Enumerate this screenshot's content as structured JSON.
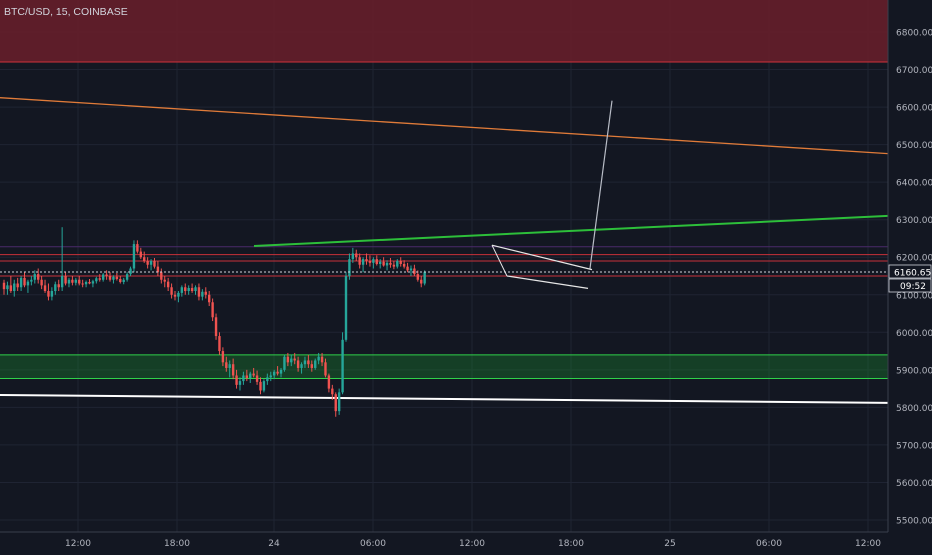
{
  "header": {
    "symbol_title": "BTC/USD, 15, COINBASE"
  },
  "price_axis": {
    "ticks": [
      "6800.00",
      "6700.00",
      "6600.00",
      "6500.00",
      "6400.00",
      "6300.00",
      "6200.00",
      "6100.00",
      "6000.00",
      "5900.00",
      "5800.00",
      "5700.00",
      "5600.00",
      "5500.00"
    ]
  },
  "time_axis": {
    "ticks": [
      "12:00",
      "18:00",
      "24",
      "06:00",
      "12:00",
      "18:00",
      "25",
      "06:00",
      "12:00"
    ]
  },
  "last_price_label": "6160.65",
  "countdown_label": "09:52",
  "colors": {
    "background": "#131722",
    "up_candle": "#26a69a",
    "down_candle": "#ef5350",
    "support_zone": "#1b8a2e",
    "resistance_zone": "#6b1f2a",
    "orange_trendline": "#e07b39",
    "green_trendline": "#2dbf3a",
    "white_trendline": "#ffffff"
  },
  "chart_data": {
    "type": "candlestick",
    "symbol": "BTC/USD",
    "interval": "15",
    "exchange": "COINBASE",
    "ylim": [
      5470,
      6870
    ],
    "x_ticks": [
      "12:00",
      "18:00",
      "24",
      "06:00",
      "12:00",
      "18:00",
      "25",
      "06:00",
      "12:00"
    ],
    "y_ticks": [
      6800,
      6700,
      6600,
      6500,
      6400,
      6300,
      6200,
      6100,
      6000,
      5900,
      5800,
      5700,
      5600,
      5500
    ],
    "last_price": 6160.65,
    "bar_countdown": "09:52",
    "zones": [
      {
        "kind": "resistance",
        "from": 6720,
        "to": 6870
      },
      {
        "kind": "support",
        "from": 5877,
        "to": 5940
      }
    ],
    "horizontal_lines": [
      6207,
      6190,
      6150,
      6228
    ],
    "trendlines": [
      {
        "color": "orange",
        "from": {
          "bar": 0,
          "price": 6625
        },
        "to": {
          "bar": 187,
          "price": 6476
        }
      },
      {
        "color": "green",
        "from": {
          "bar": 54,
          "price": 6230
        },
        "to": {
          "bar": 187,
          "price": 6310
        }
      },
      {
        "color": "white",
        "from": {
          "bar": 0,
          "price": 5833
        },
        "to": {
          "bar": 187,
          "price": 5812
        }
      },
      {
        "color": "gray",
        "from": {
          "bar": 124,
          "price": 6170
        },
        "to": {
          "bar": 130,
          "price": 6617
        }
      }
    ],
    "flag_pattern": {
      "upper": [
        {
          "bar": 104,
          "price": 6232
        },
        {
          "bar": 125,
          "price": 6167
        }
      ],
      "lower": [
        {
          "bar": 107,
          "price": 6150
        },
        {
          "bar": 125,
          "price": 6117
        }
      ]
    },
    "candles": [
      [
        6132,
        6140,
        6100,
        6115
      ],
      [
        6115,
        6135,
        6100,
        6125
      ],
      [
        6125,
        6150,
        6105,
        6110
      ],
      [
        6110,
        6140,
        6095,
        6130
      ],
      [
        6130,
        6145,
        6110,
        6120
      ],
      [
        6120,
        6150,
        6110,
        6145
      ],
      [
        6145,
        6160,
        6120,
        6125
      ],
      [
        6125,
        6140,
        6105,
        6135
      ],
      [
        6135,
        6150,
        6125,
        6140
      ],
      [
        6140,
        6165,
        6130,
        6155
      ],
      [
        6155,
        6170,
        6130,
        6140
      ],
      [
        6140,
        6150,
        6115,
        6125
      ],
      [
        6125,
        6140,
        6105,
        6110
      ],
      [
        6110,
        6130,
        6085,
        6095
      ],
      [
        6095,
        6120,
        6085,
        6110
      ],
      [
        6110,
        6135,
        6100,
        6128
      ],
      [
        6128,
        6140,
        6110,
        6120
      ],
      [
        6120,
        6280,
        6110,
        6150
      ],
      [
        6150,
        6160,
        6125,
        6130
      ],
      [
        6130,
        6145,
        6120,
        6140
      ],
      [
        6140,
        6150,
        6125,
        6132
      ],
      [
        6132,
        6145,
        6125,
        6140
      ],
      [
        6140,
        6150,
        6125,
        6130
      ],
      [
        6130,
        6140,
        6120,
        6128
      ],
      [
        6128,
        6138,
        6120,
        6134
      ],
      [
        6134,
        6142,
        6128,
        6130
      ],
      [
        6130,
        6140,
        6120,
        6136
      ],
      [
        6136,
        6148,
        6130,
        6144
      ],
      [
        6144,
        6155,
        6135,
        6140
      ],
      [
        6140,
        6158,
        6135,
        6154
      ],
      [
        6154,
        6165,
        6140,
        6150
      ],
      [
        6150,
        6160,
        6135,
        6140
      ],
      [
        6140,
        6152,
        6130,
        6148
      ],
      [
        6148,
        6158,
        6138,
        6142
      ],
      [
        6142,
        6150,
        6130,
        6134
      ],
      [
        6134,
        6145,
        6128,
        6140
      ],
      [
        6140,
        6160,
        6135,
        6155
      ],
      [
        6155,
        6175,
        6150,
        6170
      ],
      [
        6170,
        6245,
        6160,
        6235
      ],
      [
        6235,
        6245,
        6210,
        6215
      ],
      [
        6215,
        6225,
        6195,
        6200
      ],
      [
        6200,
        6215,
        6185,
        6190
      ],
      [
        6190,
        6200,
        6170,
        6180
      ],
      [
        6180,
        6195,
        6165,
        6190
      ],
      [
        6190,
        6198,
        6170,
        6175
      ],
      [
        6175,
        6190,
        6150,
        6160
      ],
      [
        6160,
        6170,
        6130,
        6140
      ],
      [
        6140,
        6150,
        6120,
        6135
      ],
      [
        6135,
        6145,
        6110,
        6120
      ],
      [
        6120,
        6130,
        6090,
        6100
      ],
      [
        6100,
        6110,
        6085,
        6095
      ],
      [
        6095,
        6110,
        6080,
        6105
      ],
      [
        6105,
        6125,
        6095,
        6120
      ],
      [
        6120,
        6130,
        6100,
        6110
      ],
      [
        6110,
        6125,
        6100,
        6118
      ],
      [
        6118,
        6130,
        6105,
        6110
      ],
      [
        6110,
        6125,
        6100,
        6120
      ],
      [
        6120,
        6130,
        6085,
        6095
      ],
      [
        6095,
        6115,
        6085,
        6108
      ],
      [
        6108,
        6120,
        6090,
        6100
      ],
      [
        6100,
        6110,
        6070,
        6080
      ],
      [
        6080,
        6090,
        6030,
        6040
      ],
      [
        6040,
        6050,
        5980,
        5990
      ],
      [
        5990,
        6000,
        5940,
        5950
      ],
      [
        5950,
        5960,
        5910,
        5920
      ],
      [
        5920,
        5935,
        5895,
        5905
      ],
      [
        5905,
        5925,
        5880,
        5915
      ],
      [
        5915,
        5930,
        5875,
        5885
      ],
      [
        5885,
        5900,
        5850,
        5860
      ],
      [
        5860,
        5880,
        5845,
        5870
      ],
      [
        5870,
        5895,
        5860,
        5885
      ],
      [
        5885,
        5900,
        5870,
        5878
      ],
      [
        5878,
        5895,
        5865,
        5890
      ],
      [
        5890,
        5905,
        5880,
        5885
      ],
      [
        5885,
        5898,
        5860,
        5868
      ],
      [
        5868,
        5880,
        5835,
        5845
      ],
      [
        5845,
        5875,
        5840,
        5870
      ],
      [
        5870,
        5890,
        5860,
        5880
      ],
      [
        5880,
        5895,
        5870,
        5885
      ],
      [
        5885,
        5900,
        5875,
        5895
      ],
      [
        5895,
        5910,
        5885,
        5890
      ],
      [
        5890,
        5905,
        5880,
        5900
      ],
      [
        5900,
        5940,
        5895,
        5935
      ],
      [
        5935,
        5945,
        5910,
        5920
      ],
      [
        5920,
        5940,
        5910,
        5930
      ],
      [
        5930,
        5945,
        5915,
        5925
      ],
      [
        5925,
        5935,
        5895,
        5905
      ],
      [
        5905,
        5920,
        5890,
        5915
      ],
      [
        5915,
        5935,
        5905,
        5925
      ],
      [
        5925,
        5940,
        5905,
        5915
      ],
      [
        5915,
        5925,
        5895,
        5905
      ],
      [
        5905,
        5930,
        5900,
        5925
      ],
      [
        5925,
        5945,
        5915,
        5935
      ],
      [
        5935,
        5945,
        5910,
        5920
      ],
      [
        5920,
        5930,
        5880,
        5885
      ],
      [
        5885,
        5890,
        5840,
        5850
      ],
      [
        5850,
        5860,
        5820,
        5835
      ],
      [
        5835,
        5840,
        5775,
        5790
      ],
      [
        5790,
        5850,
        5780,
        5840
      ],
      [
        5840,
        6000,
        5835,
        5980
      ],
      [
        5980,
        6160,
        5975,
        6150
      ],
      [
        6150,
        6210,
        6140,
        6195
      ],
      [
        6195,
        6225,
        6185,
        6210
      ],
      [
        6210,
        6220,
        6190,
        6200
      ],
      [
        6200,
        6210,
        6170,
        6180
      ],
      [
        6180,
        6200,
        6160,
        6195
      ],
      [
        6195,
        6210,
        6180,
        6190
      ],
      [
        6190,
        6205,
        6175,
        6185
      ],
      [
        6185,
        6200,
        6170,
        6195
      ],
      [
        6195,
        6205,
        6178,
        6182
      ],
      [
        6182,
        6195,
        6170,
        6188
      ],
      [
        6188,
        6200,
        6175,
        6178
      ],
      [
        6178,
        6192,
        6165,
        6185
      ],
      [
        6185,
        6198,
        6172,
        6180
      ],
      [
        6180,
        6190,
        6168,
        6175
      ],
      [
        6175,
        6195,
        6170,
        6190
      ],
      [
        6190,
        6200,
        6175,
        6182
      ],
      [
        6182,
        6192,
        6170,
        6175
      ],
      [
        6175,
        6185,
        6160,
        6165
      ],
      [
        6165,
        6178,
        6150,
        6170
      ],
      [
        6170,
        6180,
        6150,
        6155
      ],
      [
        6155,
        6165,
        6135,
        6140
      ],
      [
        6140,
        6150,
        6120,
        6130
      ],
      [
        6130,
        6165,
        6125,
        6160
      ]
    ]
  }
}
